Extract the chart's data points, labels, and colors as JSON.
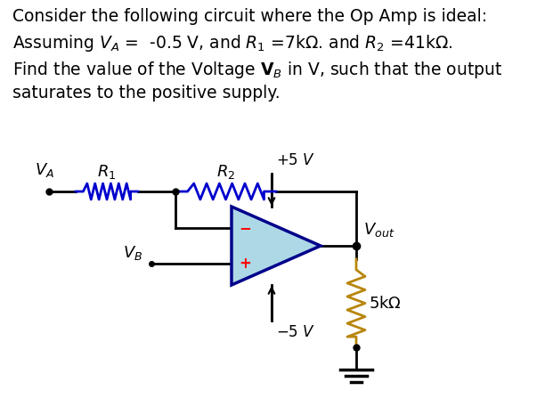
{
  "bg_color": "#ffffff",
  "text_color": "#000000",
  "wire_color": "#000000",
  "resistor_color": "#0000cd",
  "opamp_fill": "#add8e6",
  "opamp_border": "#00008b",
  "plus_color": "#ff0000",
  "minus_color": "#ff0000",
  "load_resistor_color": "#b8860b",
  "font_size_text": 13.5,
  "font_size_circuit": 13
}
